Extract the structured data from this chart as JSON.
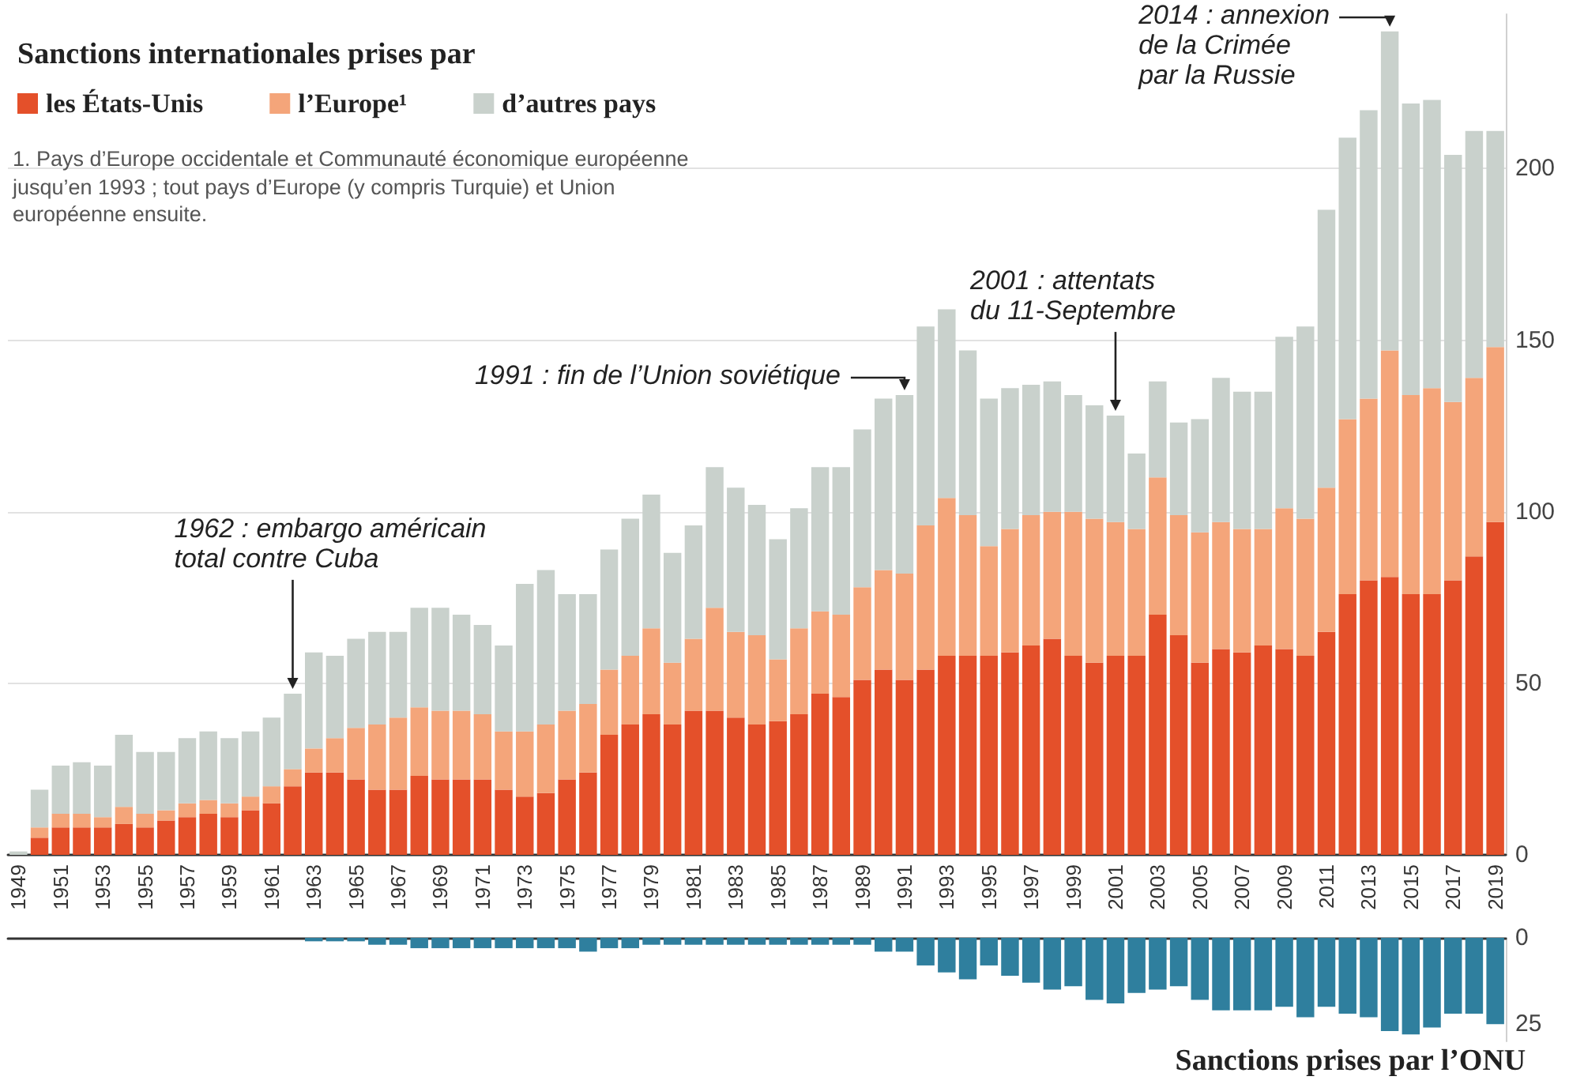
{
  "chart_data": [
    {
      "type": "bar",
      "title": "Sanctions internationales prises par",
      "stacked": true,
      "grid": "y",
      "legend": "top left",
      "categories": [
        "1949",
        null,
        "1951",
        null,
        "1953",
        null,
        "1955",
        null,
        "1957",
        null,
        "1959",
        null,
        "1961",
        null,
        "1963",
        null,
        "1965",
        null,
        "1967",
        null,
        "1969",
        null,
        "1971",
        null,
        "1973",
        null,
        "1975",
        null,
        "1977",
        null,
        "1979",
        null,
        "1981",
        null,
        "1983",
        null,
        "1985",
        null,
        "1987",
        null,
        "1989",
        null,
        "1991",
        null,
        "1993",
        null,
        "1995",
        null,
        "1997",
        null,
        "1999",
        null,
        "2001",
        null,
        "2003",
        null,
        "2005",
        null,
        "2007",
        null,
        "2009",
        null,
        "2011",
        null,
        "2013",
        null,
        "2015",
        null,
        "2017",
        null,
        "2019"
      ],
      "ylim": [
        0,
        245
      ],
      "yticks": [
        0,
        50,
        100,
        150,
        200
      ],
      "series": [
        {
          "name": "les États-Unis",
          "color": "#e4502a",
          "values": [
            0,
            5,
            8,
            8,
            8,
            9,
            8,
            10,
            11,
            12,
            11,
            13,
            15,
            20,
            24,
            24,
            22,
            19,
            19,
            23,
            22,
            22,
            22,
            19,
            17,
            18,
            22,
            24,
            35,
            38,
            41,
            38,
            42,
            42,
            40,
            38,
            39,
            41,
            47,
            46,
            51,
            54,
            51,
            54,
            58,
            58,
            58,
            59,
            61,
            63,
            58,
            56,
            58,
            58,
            70,
            64,
            56,
            60,
            59,
            61,
            60,
            58,
            65,
            76,
            80,
            81,
            76,
            76,
            80,
            87,
            97
          ]
        },
        {
          "name": "l’Europe¹",
          "color": "#f4a57a",
          "values": [
            0,
            3,
            4,
            4,
            3,
            5,
            4,
            3,
            4,
            4,
            4,
            4,
            5,
            5,
            7,
            10,
            15,
            19,
            21,
            20,
            20,
            20,
            19,
            17,
            19,
            20,
            20,
            20,
            19,
            20,
            25,
            18,
            21,
            30,
            25,
            26,
            18,
            25,
            24,
            24,
            27,
            29,
            31,
            42,
            46,
            41,
            32,
            36,
            38,
            37,
            42,
            42,
            39,
            37,
            40,
            35,
            38,
            37,
            36,
            34,
            41,
            40,
            42,
            51,
            53,
            66,
            58,
            60,
            52,
            52,
            51
          ]
        },
        {
          "name": "d’autres pays",
          "color": "#c9d1cc",
          "values": [
            1,
            11,
            14,
            15,
            15,
            21,
            18,
            17,
            19,
            20,
            19,
            19,
            20,
            22,
            28,
            24,
            26,
            27,
            25,
            29,
            30,
            28,
            26,
            25,
            43,
            45,
            34,
            32,
            35,
            40,
            39,
            32,
            33,
            41,
            42,
            38,
            35,
            35,
            42,
            43,
            46,
            50,
            52,
            58,
            55,
            48,
            43,
            41,
            38,
            38,
            34,
            33,
            31,
            22,
            28,
            27,
            33,
            42,
            40,
            40,
            50,
            56,
            81,
            82,
            84,
            93,
            85,
            84,
            72,
            72,
            63
          ]
        }
      ],
      "annotations": [
        "1. Pays d’Europe occidentale et Communauté économique européenne jusqu’en 1993 ; tout pays d’Europe (y compris Turquie) et Union européenne ensuite.",
        "1962 : embargo américain\ntotal contre Cuba",
        {
          "text": "1991 : fin de l’Union soviétique",
          "x": "1991",
          "y": 134
        },
        "2001 : attentats\ndu 11-Septembre",
        "2014 : annexion\nde la Crimée\npar la Russie"
      ]
    },
    {
      "type": "bar",
      "title": "Sanctions prises par l’ONU",
      "tick_labels": "y",
      "categories": [
        "1949",
        null,
        "1951",
        null,
        "1953",
        null,
        "1955",
        null,
        "1957",
        null,
        "1959",
        null,
        "1961",
        null,
        "1963",
        null,
        "1965",
        null,
        "1967",
        null,
        "1969",
        null,
        "1971",
        null,
        "1973",
        null,
        "1975",
        null,
        "1977",
        null,
        "1979",
        null,
        "1981",
        null,
        "1983",
        null,
        "1985",
        null,
        "1987",
        null,
        "1989",
        null,
        "1991",
        null,
        "1993",
        null,
        "1995",
        null,
        "1997",
        null,
        "1999",
        null,
        "2001",
        null,
        "2003",
        null,
        "2005",
        null,
        "2007",
        null,
        "2009",
        null,
        "2011",
        null,
        "2013",
        null,
        "2015",
        null,
        "2017",
        null,
        "2019"
      ],
      "ylim": [
        30,
        0
      ],
      "yticks": [
        0,
        25
      ],
      "series": [
        {
          "color": "#2f7f9e",
          "values": [
            0,
            0,
            0,
            0,
            0,
            0,
            0,
            0,
            0,
            0,
            0,
            0,
            0,
            0,
            1,
            1,
            1,
            2,
            2,
            3,
            3,
            3,
            3,
            3,
            3,
            3,
            3,
            4,
            3,
            3,
            2,
            2,
            2,
            2,
            2,
            2,
            2,
            2,
            2,
            2,
            2,
            4,
            4,
            8,
            10,
            12,
            8,
            11,
            13,
            15,
            14,
            18,
            19,
            16,
            15,
            14,
            18,
            21,
            21,
            21,
            20,
            23,
            20,
            22,
            23,
            27,
            28,
            26,
            22,
            22,
            25
          ]
        }
      ]
    }
  ]
}
